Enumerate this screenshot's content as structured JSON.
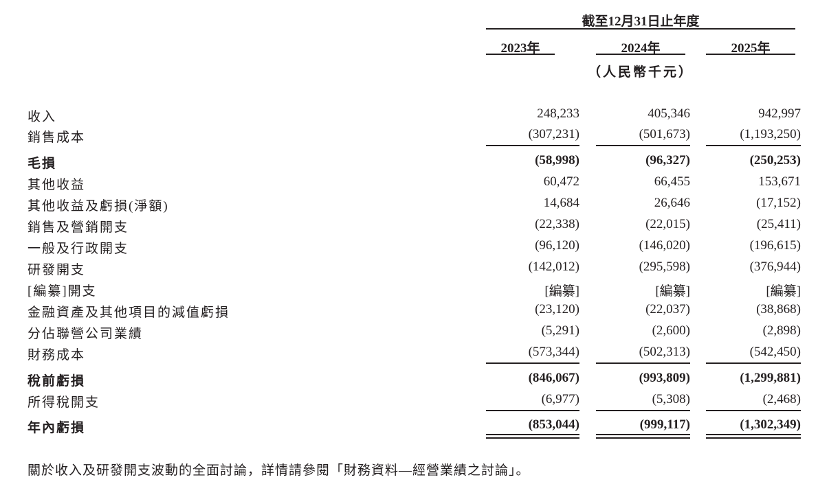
{
  "header": {
    "period": "截至12月31日止年度",
    "years": [
      "2023年",
      "2024年",
      "2025年"
    ],
    "unit": "（人民幣千元）"
  },
  "rows": [
    {
      "label": "收入",
      "values": [
        "248,233",
        "405,346",
        "942,997"
      ],
      "bold": false,
      "rule_after": false
    },
    {
      "label": "銷售成本",
      "values": [
        "(307,231)",
        "(501,673)",
        "(1,193,250)"
      ],
      "bold": false,
      "rule_after": true
    },
    {
      "label": "毛損",
      "values": [
        "(58,998)",
        "(96,327)",
        "(250,253)"
      ],
      "bold": true,
      "rule_after": false
    },
    {
      "label": "其他收益",
      "values": [
        "60,472",
        "66,455",
        "153,671"
      ],
      "bold": false,
      "rule_after": false
    },
    {
      "label": "其他收益及虧損(淨額)",
      "values": [
        "14,684",
        "26,646",
        "(17,152)"
      ],
      "bold": false,
      "rule_after": false
    },
    {
      "label": "銷售及營銷開支",
      "values": [
        "(22,338)",
        "(22,015)",
        "(25,411)"
      ],
      "bold": false,
      "rule_after": false
    },
    {
      "label": "一般及行政開支",
      "values": [
        "(96,120)",
        "(146,020)",
        "(196,615)"
      ],
      "bold": false,
      "rule_after": false
    },
    {
      "label": "研發開支",
      "values": [
        "(142,012)",
        "(295,598)",
        "(376,944)"
      ],
      "bold": false,
      "rule_after": false
    },
    {
      "label": "[編纂]開支",
      "values": [
        "[編纂]",
        "[編纂]",
        "[編纂]"
      ],
      "bold": false,
      "rule_after": false
    },
    {
      "label": "金融資產及其他項目的減值虧損",
      "values": [
        "(23,120)",
        "(22,037)",
        "(38,868)"
      ],
      "bold": false,
      "rule_after": false
    },
    {
      "label": "分佔聯營公司業績",
      "values": [
        "(5,291)",
        "(2,600)",
        "(2,898)"
      ],
      "bold": false,
      "rule_after": false
    },
    {
      "label": "財務成本",
      "values": [
        "(573,344)",
        "(502,313)",
        "(542,450)"
      ],
      "bold": false,
      "rule_after": true
    },
    {
      "label": "稅前虧損",
      "values": [
        "(846,067)",
        "(993,809)",
        "(1,299,881)"
      ],
      "bold": true,
      "rule_after": false
    },
    {
      "label": "所得稅開支",
      "values": [
        "(6,977)",
        "(5,308)",
        "(2,468)"
      ],
      "bold": false,
      "rule_after": true
    },
    {
      "label": "年內虧損",
      "values": [
        "(853,044)",
        "(999,117)",
        "(1,302,349)"
      ],
      "bold": true,
      "rule_after": false,
      "double_rule_after": true
    }
  ],
  "note": "關於收入及研發開支波動的全面討論，詳情請參閱「財務資料—經營業績之討論」。"
}
